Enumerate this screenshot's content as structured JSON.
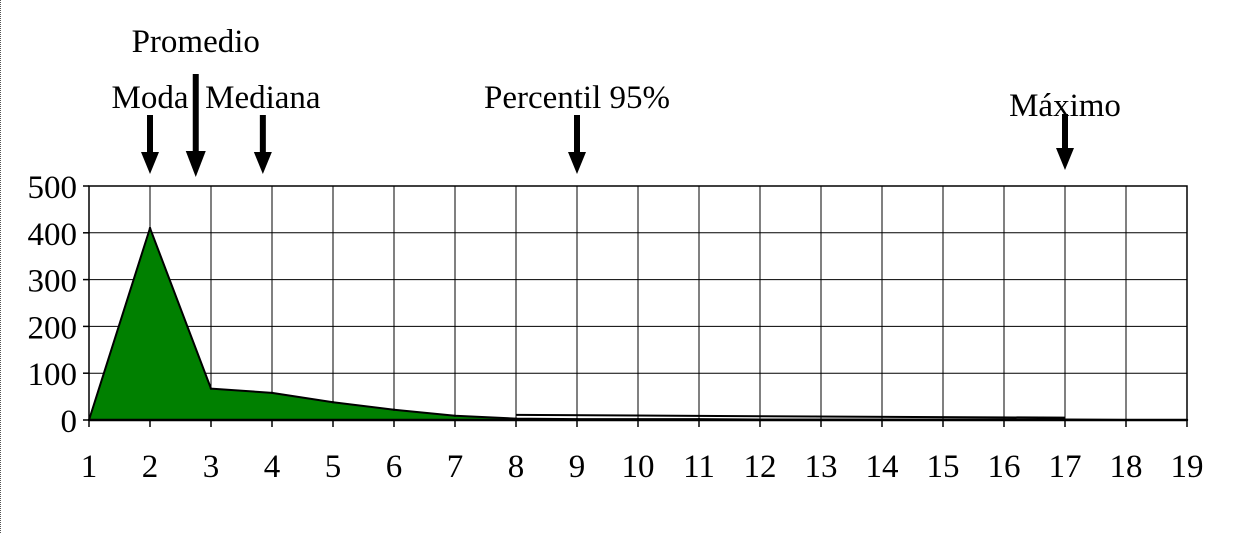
{
  "chart_data": {
    "type": "area",
    "title": "",
    "xlabel": "",
    "ylabel": "",
    "x": [
      1,
      2,
      3,
      4,
      5,
      6,
      7,
      8,
      9,
      10,
      11,
      12,
      13,
      14,
      15,
      16,
      17,
      18,
      19
    ],
    "x_tick_labels": [
      "1",
      "2",
      "3",
      "4",
      "5",
      "6",
      "7",
      "8",
      "9",
      "10",
      "11",
      "12",
      "13",
      "14",
      "15",
      "16",
      "17",
      "18",
      "19"
    ],
    "xlim": [
      1,
      19
    ],
    "y_ticks": [
      0,
      100,
      200,
      300,
      400,
      500
    ],
    "y_tick_labels": [
      "0",
      "100",
      "200",
      "300",
      "400",
      "500"
    ],
    "ylim": [
      0,
      500
    ],
    "grid": true,
    "legend": "none",
    "series": [
      {
        "x": [
          1,
          2,
          3,
          4,
          5,
          6,
          7,
          8,
          9,
          10,
          11,
          12,
          13,
          14,
          15,
          16,
          17,
          18,
          19
        ],
        "values": [
          0,
          410,
          67,
          58,
          38,
          22,
          9,
          3,
          2,
          2,
          2,
          1,
          1,
          1,
          1,
          1,
          1,
          0,
          0
        ]
      },
      {
        "x": [
          8,
          12,
          17
        ],
        "values": [
          11,
          8,
          5
        ]
      }
    ],
    "annotations": [
      {
        "label": "Moda",
        "x": 2
      },
      {
        "label": "Promedio",
        "x": 2.75
      },
      {
        "label": "Mediana",
        "x": 3.85
      },
      {
        "label": "Percentil 95%",
        "x": 9
      },
      {
        "label": "Máximo",
        "x": 17
      }
    ]
  },
  "colors": {
    "fill": "#008000",
    "line": "#000000",
    "grid": "#000000",
    "background": "#ffffff"
  }
}
